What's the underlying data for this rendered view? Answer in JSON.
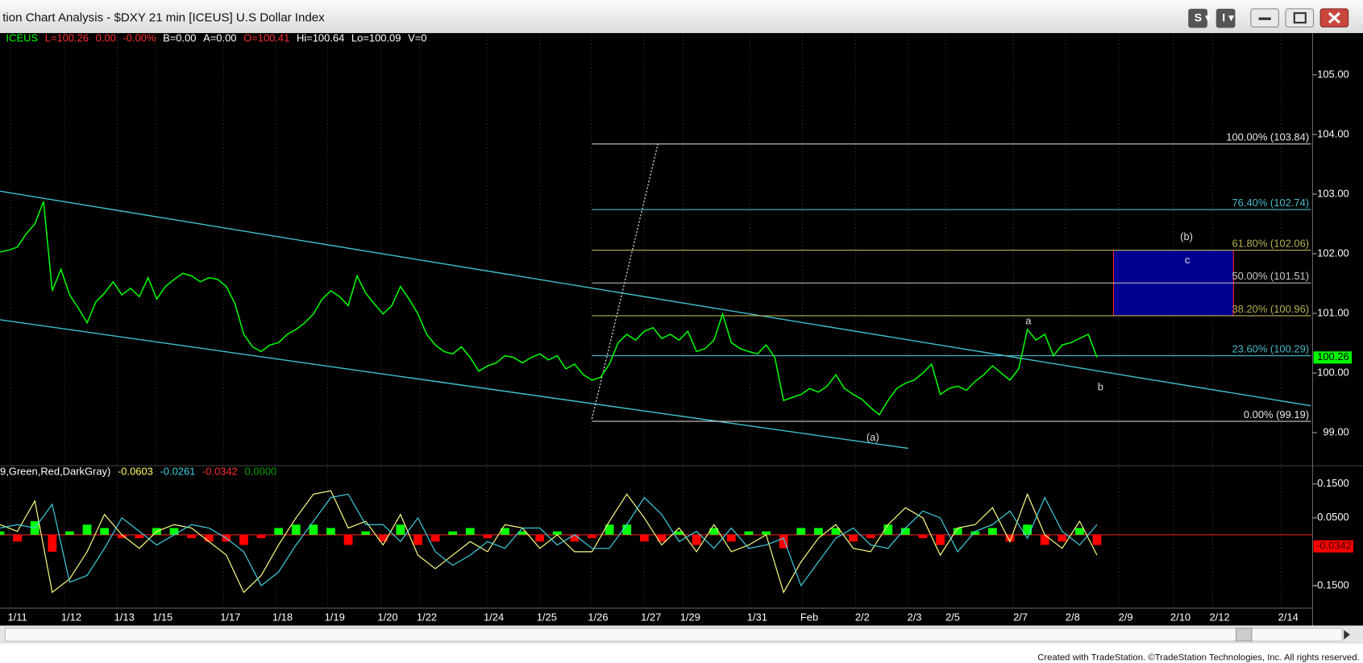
{
  "window": {
    "title": "tion Chart Analysis - $DXY 21 min [ICEUS] U.S Dollar Index",
    "footer": "Created with TradeStation. ©TradeStation Technologies, Inc. All rights reserved."
  },
  "chart_data": [
    {
      "type": "line",
      "legend": [
        {
          "text": "ICEUS",
          "color": "#00ff00"
        },
        {
          "text": "L=100.26",
          "color": "#ff3030"
        },
        {
          "text": "0.00",
          "color": "#ff3030"
        },
        {
          "text": "-0.00%",
          "color": "#ff3030"
        },
        {
          "text": "B=0.00",
          "color": "#ffffff"
        },
        {
          "text": "A=0.00",
          "color": "#ffffff"
        },
        {
          "text": "O=100.41",
          "color": "#ff3030"
        },
        {
          "text": "Hi=100.64",
          "color": "#ffffff"
        },
        {
          "text": "Lo=100.09",
          "color": "#ffffff"
        },
        {
          "text": "V=0",
          "color": "#ffffff"
        }
      ],
      "date_labels": [
        "1/11",
        "1/12",
        "1/13",
        "1/15",
        "1/17",
        "1/18",
        "1/19",
        "1/20",
        "1/22",
        "1/24",
        "1/25",
        "1/26",
        "1/27",
        "1/29",
        "1/31",
        "Feb",
        "2/2",
        "2/3",
        "2/5",
        "2/7",
        "2/8",
        "2/9",
        "2/10",
        "2/12",
        "2/14"
      ],
      "series": [
        {
          "name": "ICEUS",
          "color": "#00ff00",
          "values": [
            102.03,
            102.06,
            102.11,
            102.33,
            102.5,
            102.88,
            101.38,
            101.74,
            101.31,
            101.09,
            100.84,
            101.19,
            101.34,
            101.53,
            101.31,
            101.42,
            101.28,
            101.6,
            101.24,
            101.45,
            101.57,
            101.67,
            101.63,
            101.53,
            101.6,
            101.57,
            101.45,
            101.16,
            100.65,
            100.44,
            100.36,
            100.47,
            100.51,
            100.65,
            100.73,
            100.84,
            100.99,
            101.24,
            101.38,
            101.28,
            101.13,
            101.63,
            101.34,
            101.16,
            100.99,
            101.13,
            101.45,
            101.24,
            100.99,
            100.65,
            100.47,
            100.36,
            100.32,
            100.44,
            100.26,
            100.03,
            100.12,
            100.17,
            100.29,
            100.26,
            100.17,
            100.26,
            100.32,
            100.22,
            100.29,
            100.07,
            100.15,
            99.97,
            99.88,
            99.93,
            100.15,
            100.51,
            100.65,
            100.55,
            100.7,
            100.76,
            100.58,
            100.65,
            100.55,
            100.7,
            100.36,
            100.41,
            100.55,
            100.99,
            100.51,
            100.41,
            100.36,
            100.32,
            100.47,
            100.26,
            99.54,
            99.59,
            99.64,
            99.74,
            99.68,
            99.78,
            99.97,
            99.74,
            99.64,
            99.56,
            99.42,
            99.3,
            99.54,
            99.74,
            99.83,
            99.88,
            100.0,
            100.15,
            99.64,
            99.74,
            99.78,
            99.71,
            99.86,
            99.97,
            100.12,
            100.0,
            99.88,
            100.07,
            100.73,
            100.55,
            100.65,
            100.29,
            100.47,
            100.51,
            100.58,
            100.65,
            100.26
          ]
        }
      ],
      "last_value": 100.26,
      "ylim": [
        98.46,
        105.7
      ],
      "yticks": [
        {
          "value": 99,
          "label": "99.00"
        },
        {
          "value": 100,
          "label": "100.00"
        },
        {
          "value": 101,
          "label": "101.00"
        },
        {
          "value": 102,
          "label": "102.00"
        },
        {
          "value": 103,
          "label": "103.00"
        },
        {
          "value": 104,
          "label": "104.00"
        },
        {
          "value": 105,
          "label": "105.00"
        }
      ],
      "fib_levels": [
        {
          "label": "100.00% (103.84)",
          "value": 103.84,
          "color": "#e8e8e8"
        },
        {
          "label": "76.40% (102.74)",
          "value": 102.74,
          "color": "#48b8c8"
        },
        {
          "label": "61.80% (102.06)",
          "value": 102.06,
          "color": "#b8b050"
        },
        {
          "label": "50.00% (101.51)",
          "value": 101.51,
          "color": "#c8c8c8"
        },
        {
          "label": "38.20% (100.96)",
          "value": 100.96,
          "color": "#b8b050"
        },
        {
          "label": "23.60% (100.29)",
          "value": 100.29,
          "color": "#48b8c8"
        },
        {
          "label": "0.00% (99.19)",
          "value": 99.19,
          "color": "#e8e8e8"
        }
      ],
      "wave_labels": [
        "(b)",
        "c",
        "a",
        "b",
        "(a)"
      ]
    },
    {
      "type": "oscillator",
      "legend": [
        {
          "text": "9,Green,Red,DarkGray)",
          "color": "#ffffff"
        },
        {
          "text": "-0.0603",
          "color": "#ffff60"
        },
        {
          "text": "-0.0261",
          "color": "#40d0e0"
        },
        {
          "text": "-0.0342",
          "color": "#ff3030"
        },
        {
          "text": "0.0000",
          "color": "#00a000"
        }
      ],
      "series": [
        {
          "name": "fast",
          "color": "#ffff80",
          "values": [
            0.03,
            0.01,
            0.1,
            -0.17,
            -0.13,
            -0.05,
            0.06,
            0.0,
            -0.04,
            0.01,
            0.03,
            0.02,
            -0.02,
            -0.06,
            -0.17,
            -0.12,
            -0.03,
            0.05,
            0.12,
            0.13,
            0.02,
            0.04,
            -0.03,
            0.06,
            -0.06,
            -0.1,
            -0.06,
            -0.02,
            -0.05,
            0.03,
            0.02,
            -0.04,
            0.0,
            -0.05,
            -0.05,
            0.04,
            0.12,
            0.05,
            -0.03,
            0.02,
            -0.05,
            0.03,
            -0.05,
            -0.03,
            0.0,
            -0.17,
            -0.08,
            -0.01,
            0.03,
            -0.04,
            -0.05,
            0.03,
            0.08,
            0.05,
            -0.06,
            0.02,
            0.03,
            0.08,
            -0.02,
            0.12,
            0.0,
            -0.04,
            0.04,
            -0.06
          ]
        },
        {
          "name": "slow",
          "color": "#40d0e0",
          "values": [
            0.02,
            0.03,
            0.02,
            0.09,
            -0.14,
            -0.12,
            -0.04,
            0.05,
            0.01,
            -0.03,
            0.0,
            0.03,
            0.02,
            -0.01,
            -0.05,
            -0.15,
            -0.11,
            -0.03,
            0.04,
            0.11,
            0.12,
            0.03,
            0.03,
            -0.02,
            0.05,
            -0.05,
            -0.09,
            -0.06,
            -0.02,
            -0.04,
            0.02,
            0.02,
            -0.03,
            0.0,
            -0.04,
            -0.04,
            0.03,
            0.11,
            0.06,
            -0.02,
            0.01,
            -0.04,
            0.02,
            -0.04,
            -0.03,
            -0.01,
            -0.15,
            -0.08,
            -0.01,
            0.02,
            -0.03,
            -0.04,
            0.02,
            0.07,
            0.05,
            -0.05,
            0.01,
            0.03,
            0.07,
            -0.01,
            0.11,
            0.01,
            -0.03,
            0.03
          ]
        },
        {
          "name": "histogram",
          "color": "#00ff00",
          "neg_color": "#ff0000",
          "values": [
            0.01,
            -0.02,
            0.04,
            -0.05,
            0.01,
            0.03,
            0.02,
            -0.01,
            -0.01,
            0.02,
            0.02,
            -0.01,
            -0.02,
            -0.02,
            -0.03,
            -0.01,
            0.02,
            0.03,
            0.03,
            0.02,
            -0.03,
            0.01,
            -0.02,
            0.03,
            -0.03,
            -0.02,
            0.01,
            0.02,
            -0.01,
            0.02,
            0.01,
            -0.02,
            0.01,
            -0.02,
            -0.01,
            0.03,
            0.03,
            -0.02,
            -0.02,
            0.01,
            -0.03,
            0.02,
            -0.02,
            0.01,
            0.01,
            -0.04,
            0.02,
            0.02,
            0.02,
            -0.02,
            -0.01,
            0.03,
            0.02,
            -0.01,
            -0.03,
            0.02,
            0.01,
            0.02,
            -0.02,
            0.03,
            -0.03,
            -0.02,
            0.02,
            -0.03
          ]
        }
      ],
      "last_value": -0.0342,
      "ylim": [
        -0.2167,
        0.2013
      ],
      "yticks": [
        {
          "value": 0.15,
          "label": "0.1500"
        },
        {
          "value": 0.05,
          "label": "0.0500"
        },
        {
          "value": -0.15,
          "label": "-0.1500"
        }
      ]
    }
  ]
}
